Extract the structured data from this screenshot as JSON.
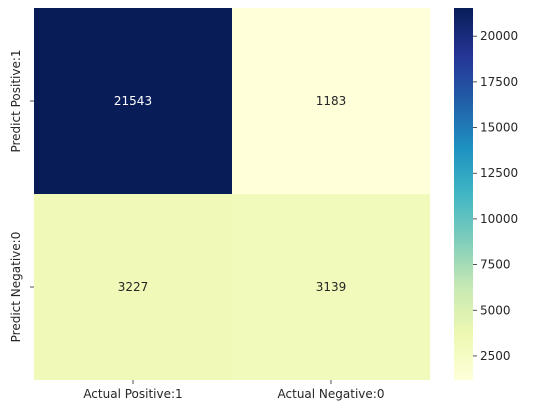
{
  "chart_data": {
    "type": "heatmap",
    "x_categories": [
      "Actual Positive:1",
      "Actual Negative:0"
    ],
    "y_categories": [
      "Predict Positive:1",
      "Predict Negative:0"
    ],
    "values": [
      [
        21543,
        1183
      ],
      [
        3227,
        3139
      ]
    ],
    "value_labels": [
      [
        "21543",
        "1183"
      ],
      [
        "3227",
        "3139"
      ]
    ],
    "colormap": "YlGnBu",
    "color_range": [
      1183,
      21543
    ],
    "colorbar_ticks": [
      {
        "value": 2500,
        "label": "2500"
      },
      {
        "value": 5000,
        "label": "5000"
      },
      {
        "value": 7500,
        "label": "7500"
      },
      {
        "value": 10000,
        "label": "10000"
      },
      {
        "value": 12500,
        "label": "12500"
      },
      {
        "value": 15000,
        "label": "15000"
      },
      {
        "value": 17500,
        "label": "17500"
      },
      {
        "value": 20000,
        "label": "20000"
      }
    ],
    "colorbar_stops": [
      "#ffffd9",
      "#edf8b1",
      "#c7e9b4",
      "#7fcdbb",
      "#41b6c4",
      "#1d91c0",
      "#225ea8",
      "#253494",
      "#081d58"
    ],
    "dark_text_color": "#262626",
    "light_text_color": "#ffffff"
  }
}
